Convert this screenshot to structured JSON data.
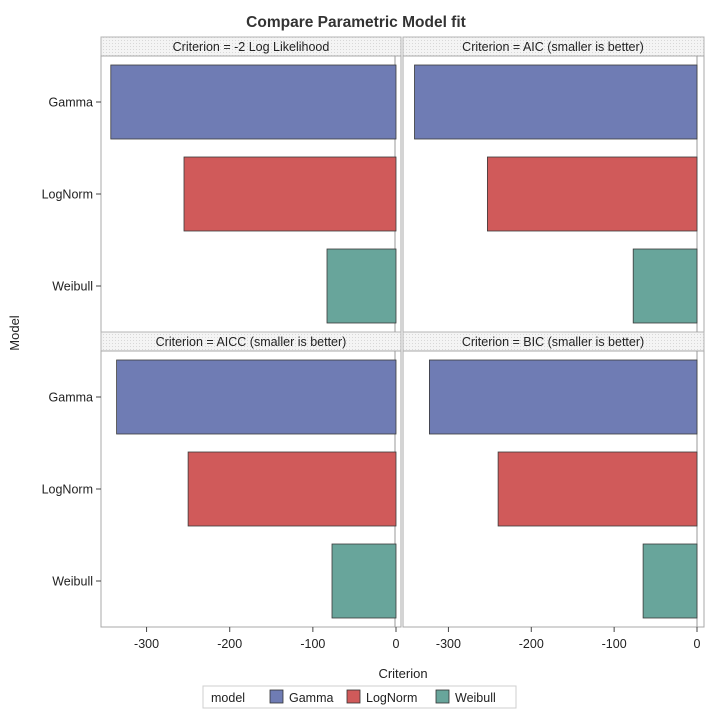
{
  "chart_data": {
    "type": "bar",
    "orientation": "horizontal",
    "title": "Compare Parametric Model fit",
    "xlabel": "Criterion",
    "ylabel": "Model",
    "categories": [
      "Gamma",
      "LogNorm",
      "Weibull"
    ],
    "xlim": [
      -350,
      0
    ],
    "x_ticks": [
      -300,
      -200,
      -100,
      0
    ],
    "x_tick_labels": [
      "-300",
      "-200",
      "-100",
      "0"
    ],
    "colors": {
      "Gamma": "#6f7cb4",
      "LogNorm": "#d05a5a",
      "Weibull": "#68a59b"
    },
    "panels": [
      {
        "label": "Criterion = -2 Log Likelihood",
        "values": [
          -343,
          -255,
          -83
        ]
      },
      {
        "label": "Criterion = AIC (smaller is better)",
        "values": [
          -341,
          -253,
          -77
        ]
      },
      {
        "label": "Criterion = AICC (smaller is better)",
        "values": [
          -336,
          -250,
          -77
        ]
      },
      {
        "label": "Criterion = BIC (smaller is better)",
        "values": [
          -323,
          -240,
          -65
        ]
      }
    ],
    "legend": {
      "title": "model",
      "entries": [
        "Gamma",
        "LogNorm",
        "Weibull"
      ],
      "position": "bottom"
    }
  }
}
